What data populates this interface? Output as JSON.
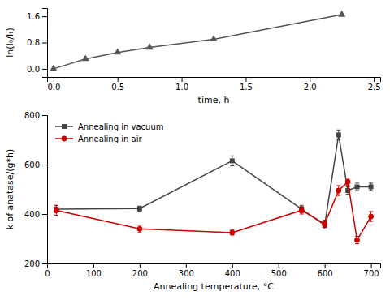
{
  "chart_data": [
    {
      "type": "line",
      "x": [
        0.0,
        0.25,
        0.5,
        0.75,
        1.25,
        2.25
      ],
      "values": [
        0.0,
        0.3,
        0.5,
        0.65,
        0.9,
        1.65
      ],
      "color": "#555555",
      "marker": "triangle",
      "xlabel": "time, h",
      "ylabel": "ln(I₀/Iₜ)",
      "xlim": [
        -0.05,
        2.55
      ],
      "ylim": [
        -0.25,
        1.85
      ],
      "xticks": [
        {
          "value": 0,
          "label": "0.0"
        },
        0.5,
        {
          "value": 1,
          "label": "1.0"
        },
        1.5,
        {
          "value": 2,
          "label": "2.0"
        },
        2.5
      ],
      "yticks": [
        {
          "value": 0,
          "label": "0.0"
        },
        0.8,
        1.6
      ]
    },
    {
      "type": "line",
      "x": [
        20,
        200,
        400,
        550,
        600,
        630,
        650,
        670,
        700
      ],
      "series": [
        {
          "name": "Annealing in vacuum",
          "color": "#444444",
          "marker": "square",
          "values": [
            420,
            422,
            615,
            420,
            355,
            720,
            495,
            510,
            510
          ],
          "errors": [
            15,
            10,
            20,
            15,
            15,
            20,
            15,
            15,
            15
          ]
        },
        {
          "name": "Annealing in air",
          "color": "#cc0000",
          "marker": "circle",
          "values": [
            415,
            340,
            325,
            415,
            360,
            495,
            530,
            295,
            390
          ],
          "errors": [
            20,
            15,
            10,
            15,
            15,
            20,
            15,
            15,
            20
          ]
        }
      ],
      "xlabel": "Annealing temperature, °C",
      "ylabel": "k of anatase/(g*h)",
      "xlim": [
        0,
        720
      ],
      "ylim": [
        200,
        800
      ],
      "xticks": [
        0,
        100,
        200,
        300,
        400,
        500,
        600,
        700
      ],
      "yticks": [
        200,
        400,
        600,
        800
      ],
      "legend": "upper left"
    }
  ]
}
